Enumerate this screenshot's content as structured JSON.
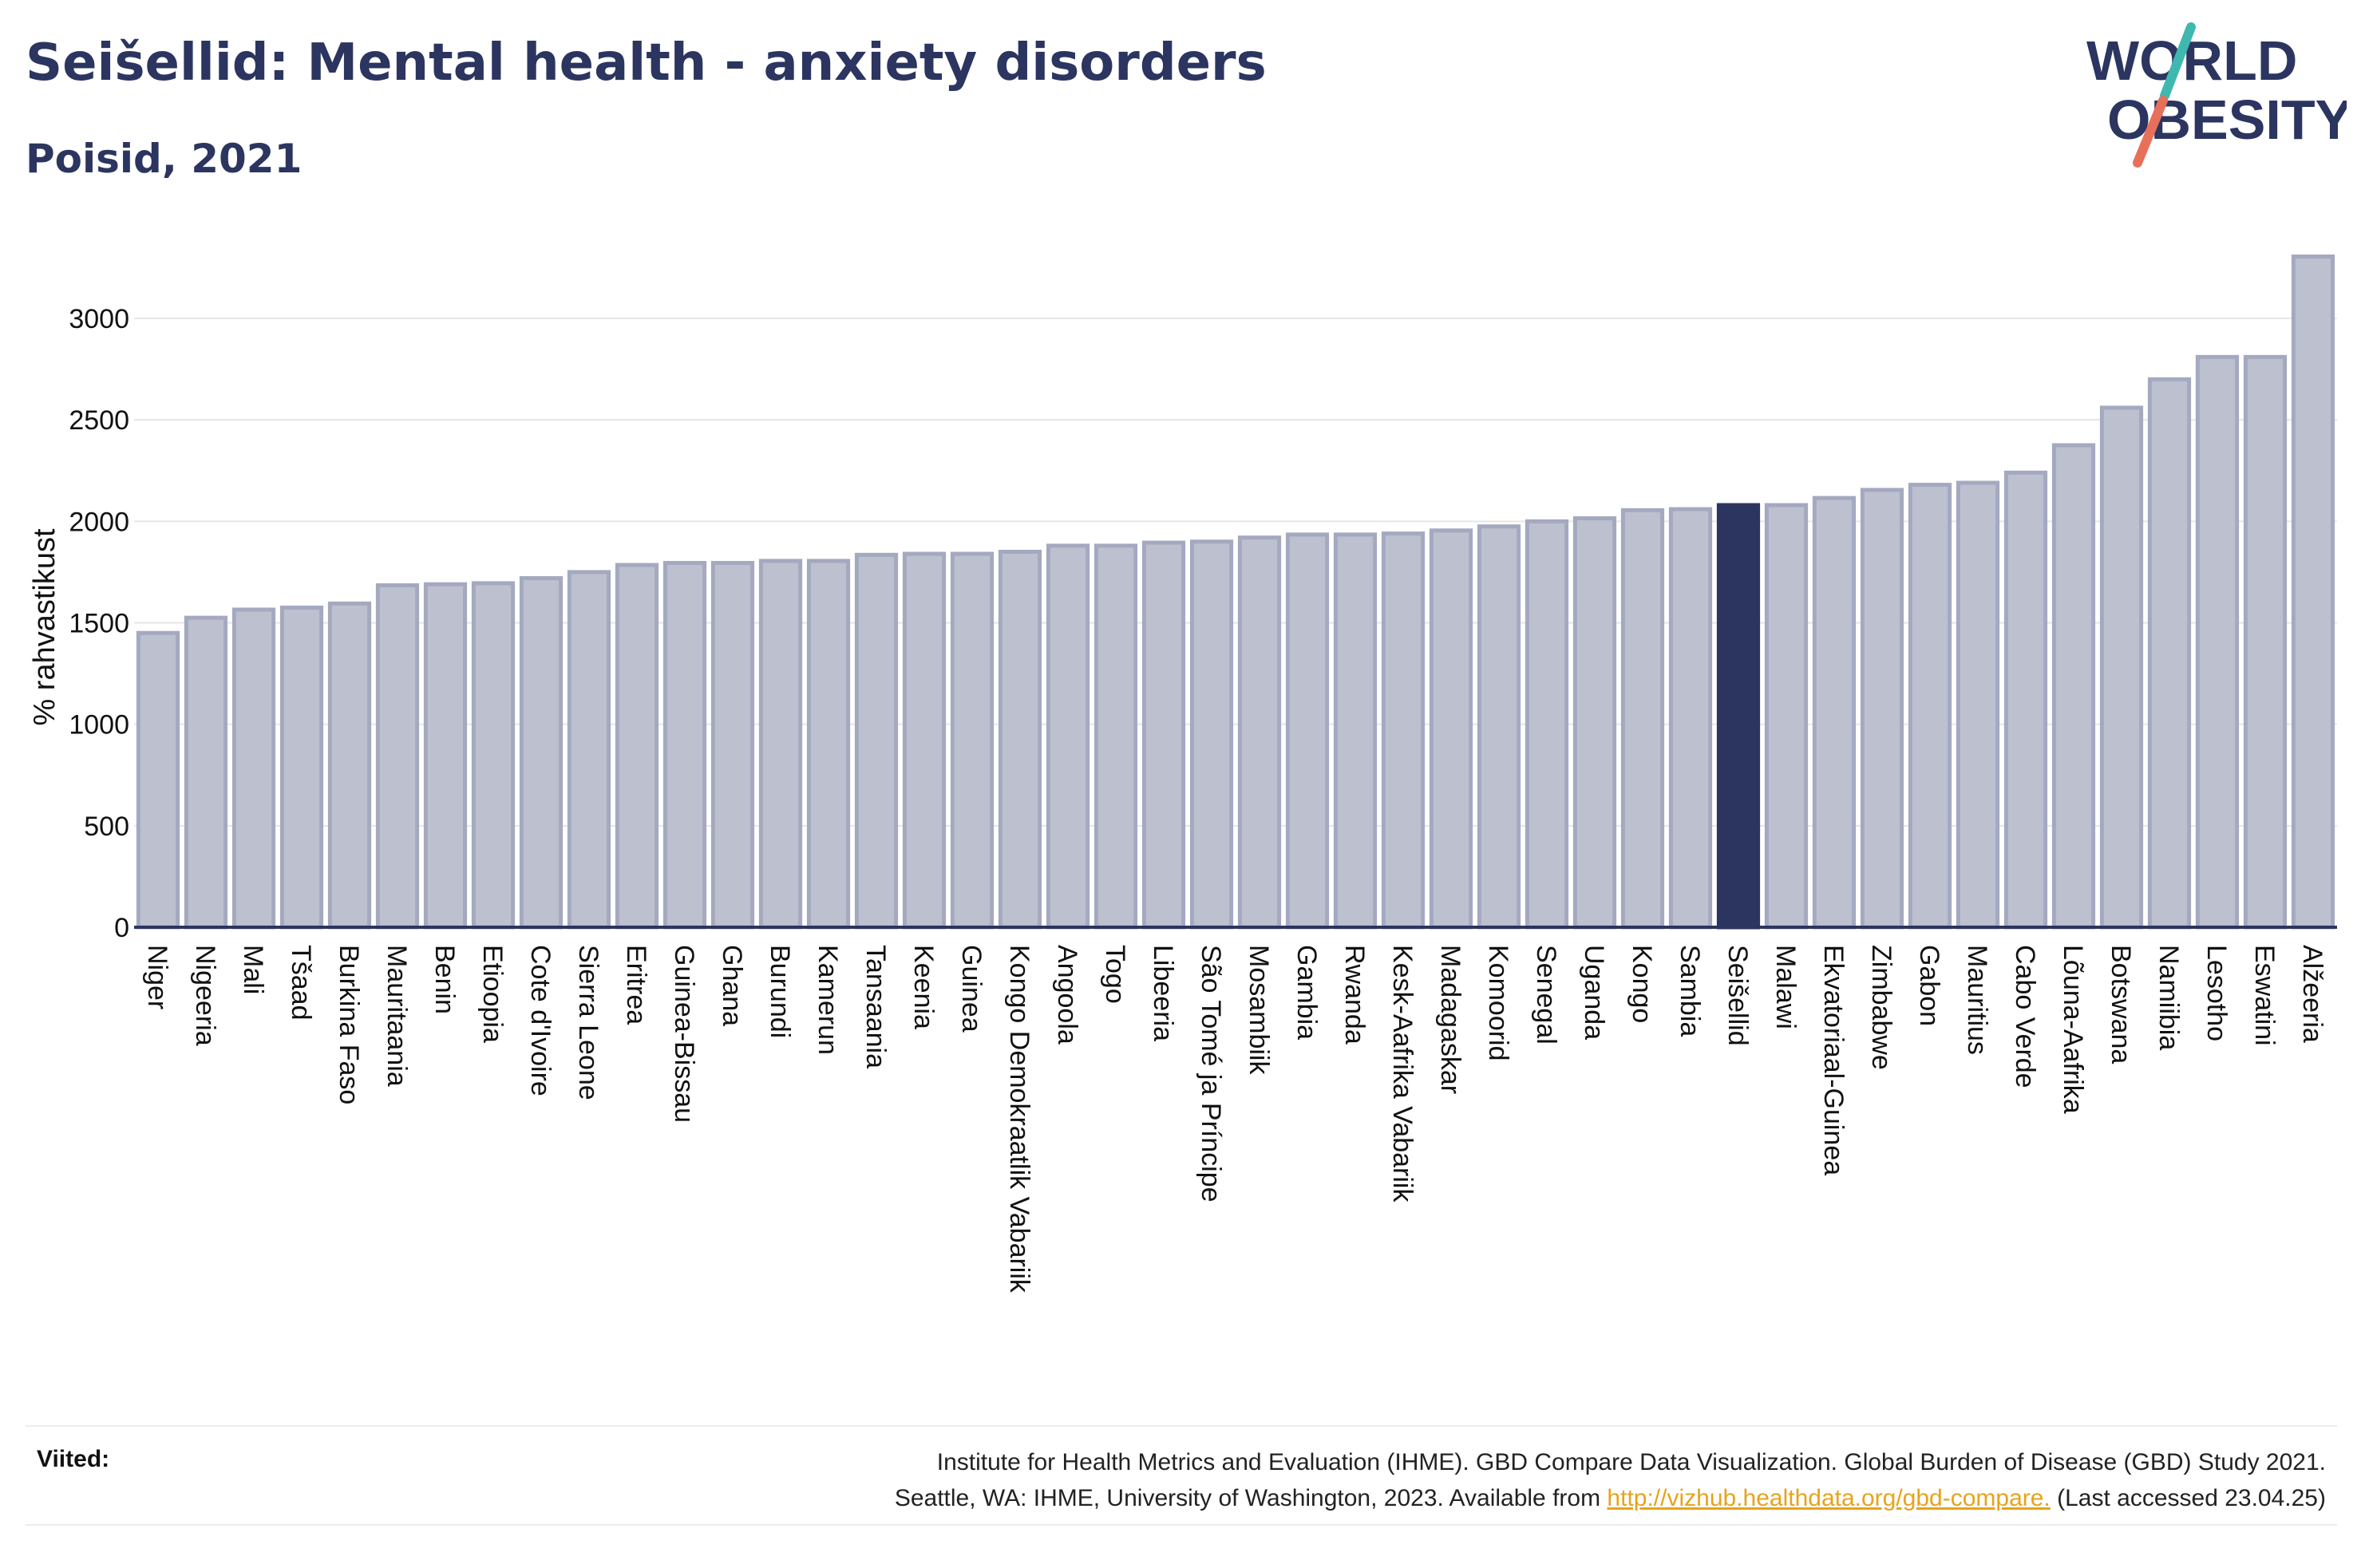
{
  "header": {
    "title": "Seišellid: Mental health - anxiety disorders",
    "subtitle": "Poisid, 2021"
  },
  "logo": {
    "line1": "WORLD",
    "line2": "OBESITY",
    "colors": {
      "text": "#2b3560",
      "slash_top": "#3fb8b0",
      "slash_bottom": "#e8705a"
    }
  },
  "colors": {
    "bar_default": "#bcc0cf",
    "bar_default_stroke": "#a4a9c0",
    "bar_highlight": "#2b3560",
    "axis": "#2b3560",
    "grid": "#e6e6e6"
  },
  "chart_data": {
    "type": "bar",
    "title": "Seišellid: Mental health - anxiety disorders",
    "subtitle": "Poisid, 2021",
    "ylabel": "% rahvastikust",
    "xlabel": "",
    "ylim": [
      0,
      3350
    ],
    "yticks": [
      0,
      500,
      1000,
      1500,
      2000,
      2500,
      3000
    ],
    "grid": true,
    "highlight": "Seišellid",
    "categories": [
      "Niger",
      "Nigeeria",
      "Mali",
      "Tšaad",
      "Burkina Faso",
      "Mauritaania",
      "Benin",
      "Etioopia",
      "Cote d'Ivoire",
      "Sierra Leone",
      "Eritrea",
      "Guinea-Bissau",
      "Ghana",
      "Burundi",
      "Kamerun",
      "Tansaania",
      "Keenia",
      "Guinea",
      "Kongo Demokraatlik Vabariik",
      "Angoola",
      "Togo",
      "Libeeria",
      "São Tomé ja Príncipe",
      "Mosambiik",
      "Gambia",
      "Rwanda",
      "Kesk-Aafrika Vabariik",
      "Madagaskar",
      "Komoorid",
      "Senegal",
      "Uganda",
      "Kongo",
      "Sambia",
      "Seišellid",
      "Malawi",
      "Ekvatoriaal-Guinea",
      "Zimbabwe",
      "Gabon",
      "Mauritius",
      "Cabo Verde",
      "Lõuna-Aafrika",
      "Botswana",
      "Namiibia",
      "Lesotho",
      "Eswatini",
      "Alžeeria"
    ],
    "values": [
      1450,
      1525,
      1565,
      1575,
      1595,
      1685,
      1690,
      1695,
      1720,
      1750,
      1785,
      1795,
      1795,
      1805,
      1805,
      1835,
      1840,
      1840,
      1850,
      1880,
      1880,
      1895,
      1900,
      1920,
      1935,
      1935,
      1940,
      1955,
      1975,
      2000,
      2015,
      2055,
      2060,
      2080,
      2080,
      2115,
      2155,
      2180,
      2190,
      2240,
      2375,
      2560,
      2700,
      2810,
      2810,
      3305
    ]
  },
  "footer": {
    "sources_label": "Viited:",
    "sources_line1": "Institute for Health Metrics and Evaluation (IHME). GBD Compare Data Visualization. Global Burden of Disease (GBD) Study 2021.",
    "sources_line2_pre": "Seattle, WA: IHME, University of Washington, 2023. Available from ",
    "sources_link": "http://vizhub.healthdata.org/gbd-compare.",
    "sources_line2_post": " (Last accessed 23.04.25)"
  }
}
